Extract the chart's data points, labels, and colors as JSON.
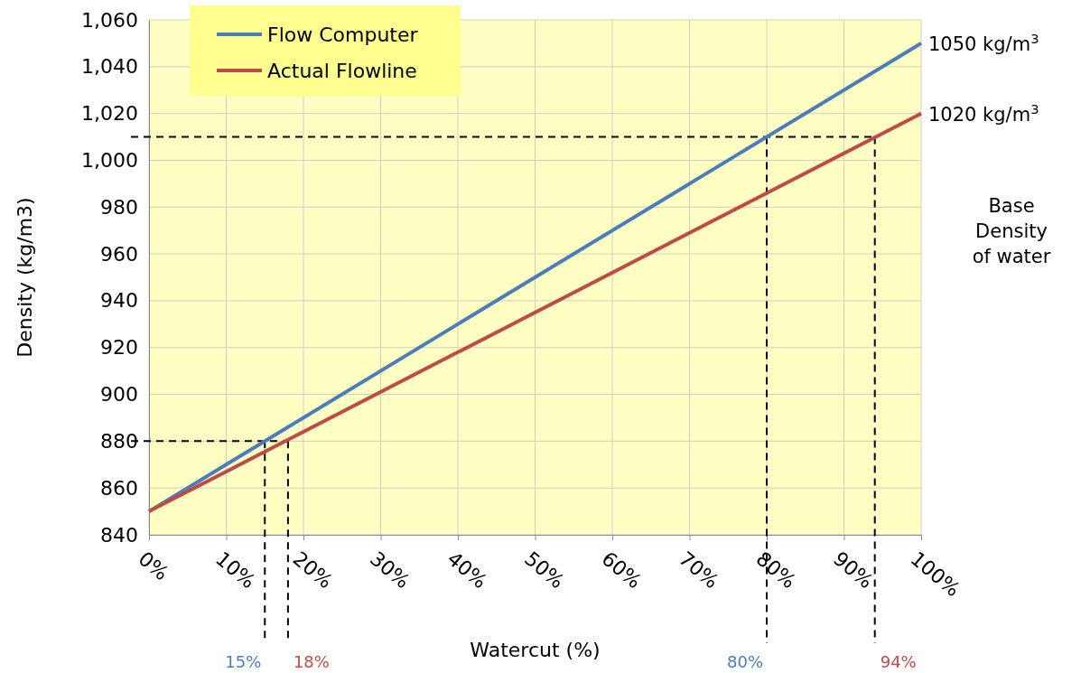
{
  "chart_data": {
    "type": "line",
    "xlabel": "Watercut (%)",
    "ylabel": "Density (kg/m3)",
    "xlim": [
      0,
      100
    ],
    "ylim": [
      840,
      1060
    ],
    "xticks": [
      {
        "value": 0,
        "label": "0%"
      },
      {
        "value": 10,
        "label": "10%"
      },
      {
        "value": 20,
        "label": "20%"
      },
      {
        "value": 30,
        "label": "30%"
      },
      {
        "value": 40,
        "label": "40%"
      },
      {
        "value": 50,
        "label": "50%"
      },
      {
        "value": 60,
        "label": "60%"
      },
      {
        "value": 70,
        "label": "70%"
      },
      {
        "value": 80,
        "label": "80%"
      },
      {
        "value": 90,
        "label": "90%"
      },
      {
        "value": 100,
        "label": "100%"
      }
    ],
    "yticks": [
      {
        "value": 840,
        "label": "840"
      },
      {
        "value": 860,
        "label": "860"
      },
      {
        "value": 880,
        "label": "880"
      },
      {
        "value": 900,
        "label": "900"
      },
      {
        "value": 920,
        "label": "920"
      },
      {
        "value": 940,
        "label": "940"
      },
      {
        "value": 960,
        "label": "960"
      },
      {
        "value": 980,
        "label": "980"
      },
      {
        "value": 1000,
        "label": "1,000"
      },
      {
        "value": 1020,
        "label": "1,020"
      },
      {
        "value": 1040,
        "label": "1,040"
      },
      {
        "value": 1060,
        "label": "1,060"
      }
    ],
    "x": [
      0,
      100
    ],
    "series": [
      {
        "name": "Flow Computer",
        "color": "#4a7ebb",
        "values": [
          850,
          1050
        ]
      },
      {
        "name": "Actual Flowline",
        "color": "#be4b48",
        "values": [
          850,
          1020
        ]
      }
    ],
    "ref_lines": [
      {
        "axis": "y",
        "value": 880,
        "label": null,
        "color": "#000000",
        "line_style": "dashed"
      },
      {
        "axis": "y",
        "value": 1010,
        "label": null,
        "color": "#000000",
        "line_style": "dashed"
      },
      {
        "axis": "x",
        "value": 15,
        "label": "15%",
        "color": "#000000",
        "line_style": "dashed"
      },
      {
        "axis": "x",
        "value": 18,
        "label": "18%",
        "color": "#000000",
        "line_style": "dashed"
      },
      {
        "axis": "x",
        "value": 80,
        "label": "80%",
        "color": "#000000",
        "line_style": "dashed"
      },
      {
        "axis": "x",
        "value": 94,
        "label": "94%",
        "color": "#000000",
        "line_style": "dashed"
      }
    ],
    "annotations": [
      {
        "text": "1050 kg/m$^{3}$",
        "x": 100,
        "y": 1050
      },
      {
        "text": "1020 kg/m$^{3}$",
        "x": 100,
        "y": 1020
      },
      "Base Density of water"
    ],
    "grid": true,
    "legend": "top left",
    "marker": "none",
    "line_style": "solid"
  }
}
